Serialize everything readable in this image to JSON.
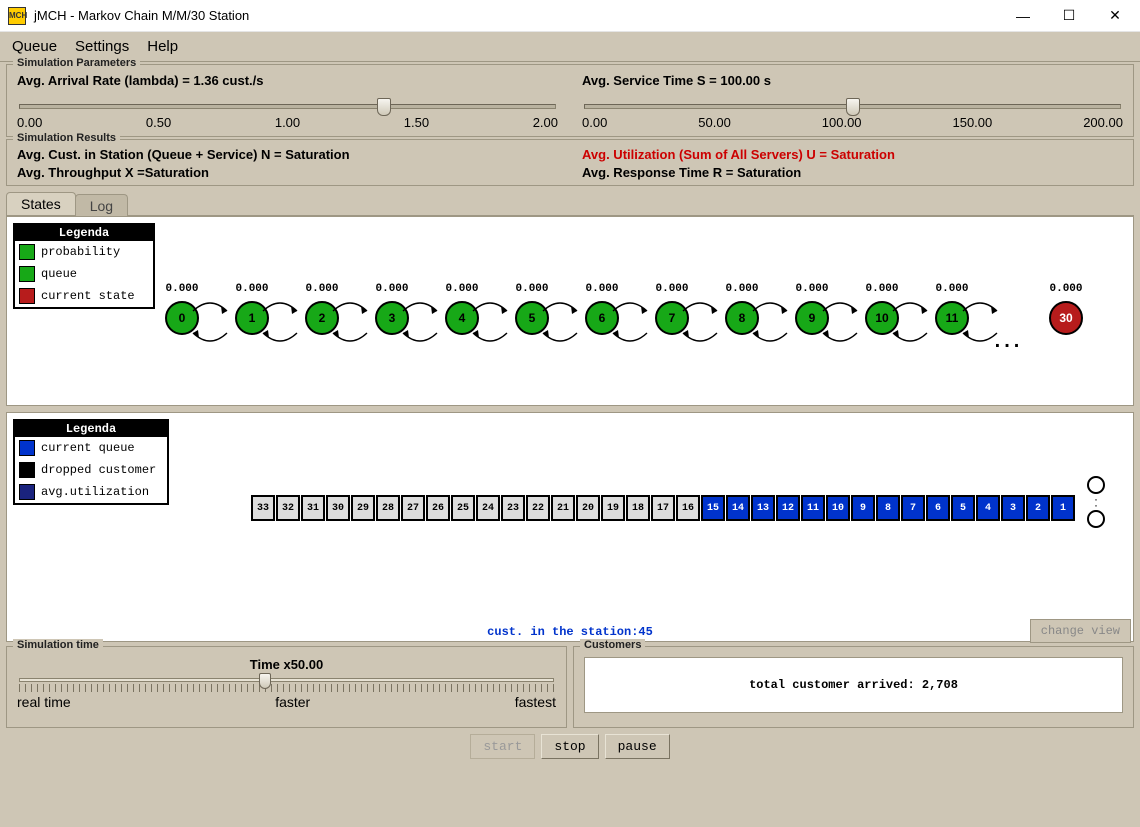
{
  "window": {
    "title": "jMCH - Markov Chain M/M/30 Station",
    "icon_text": "MCH"
  },
  "menu": {
    "items": [
      "Queue",
      "Settings",
      "Help"
    ]
  },
  "sim_params": {
    "frame_title": "Simulation Parameters",
    "lambda": {
      "label": "Avg. Arrival Rate (lambda) = 1.36 cust./s",
      "ticks": [
        "0.00",
        "0.50",
        "1.00",
        "1.50",
        "2.00"
      ],
      "min": 0,
      "max": 2,
      "value": 1.36
    },
    "service": {
      "label": "Avg. Service Time S = 100.00 s",
      "ticks": [
        "0.00",
        "50.00",
        "100.00",
        "150.00",
        "200.00"
      ],
      "min": 0,
      "max": 200,
      "value": 100
    }
  },
  "sim_results": {
    "frame_title": "Simulation Results",
    "left1": "Avg. Cust. in Station (Queue + Service) N = Saturation",
    "left2": "Avg. Throughput X =Saturation",
    "right1": "Avg. Utilization (Sum of All Servers) U = Saturation",
    "right2": "Avg. Response Time R = Saturation",
    "right1_color": "#cc0000"
  },
  "tabs": {
    "items": [
      "States",
      "Log"
    ],
    "active": 0
  },
  "chain": {
    "legend_title": "Legenda",
    "legend": [
      {
        "label": "probability",
        "color": "#17a817"
      },
      {
        "label": "queue",
        "color": "#17a817"
      },
      {
        "label": "current state",
        "color": "#b71c1c"
      }
    ],
    "state_green": "#17a817",
    "state_red": "#b71c1c",
    "states": [
      {
        "n": "0",
        "p": "0.000",
        "color": "#17a817"
      },
      {
        "n": "1",
        "p": "0.000",
        "color": "#17a817"
      },
      {
        "n": "2",
        "p": "0.000",
        "color": "#17a817"
      },
      {
        "n": "3",
        "p": "0.000",
        "color": "#17a817"
      },
      {
        "n": "4",
        "p": "0.000",
        "color": "#17a817"
      },
      {
        "n": "5",
        "p": "0.000",
        "color": "#17a817"
      },
      {
        "n": "6",
        "p": "0.000",
        "color": "#17a817"
      },
      {
        "n": "7",
        "p": "0.000",
        "color": "#17a817"
      },
      {
        "n": "8",
        "p": "0.000",
        "color": "#17a817"
      },
      {
        "n": "9",
        "p": "0.000",
        "color": "#17a817"
      },
      {
        "n": "10",
        "p": "0.000",
        "color": "#17a817"
      },
      {
        "n": "11",
        "p": "0.000",
        "color": "#17a817"
      }
    ],
    "last_state": {
      "n": "30",
      "p": "0.000",
      "color": "#b71c1c"
    }
  },
  "queue": {
    "legend_title": "Legenda",
    "legend": [
      {
        "label": "current queue",
        "color": "#0033cc"
      },
      {
        "label": "dropped customer",
        "color": "#000000"
      },
      {
        "label": "avg.utilization",
        "color": "#1a237e"
      }
    ],
    "boxes": [
      {
        "n": "33",
        "filled": false
      },
      {
        "n": "32",
        "filled": false
      },
      {
        "n": "31",
        "filled": false
      },
      {
        "n": "30",
        "filled": false
      },
      {
        "n": "29",
        "filled": false
      },
      {
        "n": "28",
        "filled": false
      },
      {
        "n": "27",
        "filled": false
      },
      {
        "n": "26",
        "filled": false
      },
      {
        "n": "25",
        "filled": false
      },
      {
        "n": "24",
        "filled": false
      },
      {
        "n": "23",
        "filled": false
      },
      {
        "n": "22",
        "filled": false
      },
      {
        "n": "21",
        "filled": false
      },
      {
        "n": "20",
        "filled": false
      },
      {
        "n": "19",
        "filled": false
      },
      {
        "n": "18",
        "filled": false
      },
      {
        "n": "17",
        "filled": false
      },
      {
        "n": "16",
        "filled": false
      },
      {
        "n": "15",
        "filled": true
      },
      {
        "n": "14",
        "filled": true
      },
      {
        "n": "13",
        "filled": true
      },
      {
        "n": "12",
        "filled": true
      },
      {
        "n": "11",
        "filled": true
      },
      {
        "n": "10",
        "filled": true
      },
      {
        "n": "9",
        "filled": true
      },
      {
        "n": "8",
        "filled": true
      },
      {
        "n": "7",
        "filled": true
      },
      {
        "n": "6",
        "filled": true
      },
      {
        "n": "5",
        "filled": true
      },
      {
        "n": "4",
        "filled": true
      },
      {
        "n": "3",
        "filled": true
      },
      {
        "n": "2",
        "filled": true
      },
      {
        "n": "1",
        "filled": true
      }
    ],
    "status_line": "cust. in the station:45",
    "change_view": "change view"
  },
  "sim_time": {
    "frame_title": "Simulation time",
    "center_label": "Time x50.00",
    "left": "real time",
    "mid": "faster",
    "right": "fastest",
    "pos_pct": 46
  },
  "customers": {
    "frame_title": "Customers",
    "text": "total customer arrived: 2,708"
  },
  "buttons": {
    "start": "start",
    "stop": "stop",
    "pause": "pause",
    "start_disabled": true
  }
}
